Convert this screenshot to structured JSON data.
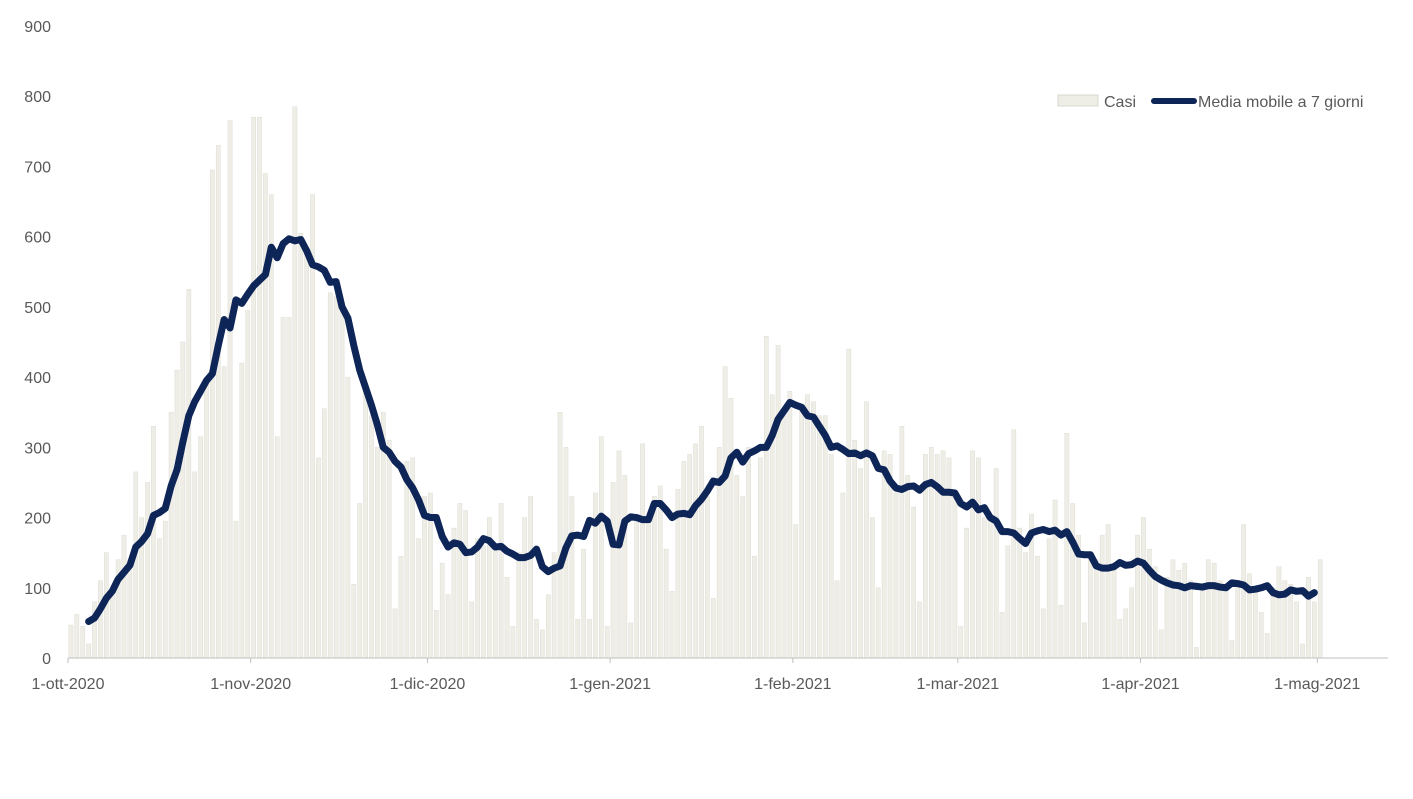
{
  "chart_data": {
    "type": "bar",
    "title": "",
    "xlabel": "",
    "ylabel": "",
    "ylim": [
      0,
      900
    ],
    "yticks": [
      0,
      100,
      200,
      300,
      400,
      500,
      600,
      700,
      800,
      900
    ],
    "x_start": "2020-10-01",
    "x_end": "2021-05-12",
    "xticks": [
      {
        "date": "2020-10-01",
        "label": "1-ott-2020"
      },
      {
        "date": "2020-11-01",
        "label": "1-nov-2020"
      },
      {
        "date": "2020-12-01",
        "label": "1-dic-2020"
      },
      {
        "date": "2021-01-01",
        "label": "1-gen-2021"
      },
      {
        "date": "2021-02-01",
        "label": "1-feb-2021"
      },
      {
        "date": "2021-03-01",
        "label": "1-mar-2021"
      },
      {
        "date": "2021-04-01",
        "label": "1-apr-2021"
      },
      {
        "date": "2021-05-01",
        "label": "1-mag-2021"
      }
    ],
    "legend_position": "top-right",
    "grid": false,
    "series": [
      {
        "name": "Casi",
        "kind": "bar",
        "color": "#eeede6",
        "stroke": "#d9d8cf",
        "values": [
          47,
          62,
          45,
          20,
          80,
          110,
          150,
          100,
          140,
          175,
          140,
          265,
          200,
          250,
          330,
          170,
          195,
          350,
          410,
          450,
          525,
          265,
          315,
          400,
          695,
          730,
          415,
          765,
          195,
          420,
          495,
          770,
          770,
          690,
          660,
          315,
          485,
          485,
          785,
          605,
          580,
          660,
          285,
          355,
          520,
          515,
          500,
          400,
          105,
          220,
          385,
          345,
          300,
          350,
          310,
          70,
          145,
          280,
          285,
          170,
          230,
          235,
          68,
          135,
          90,
          185,
          220,
          210,
          80,
          170,
          160,
          200,
          160,
          220,
          115,
          45,
          150,
          200,
          230,
          55,
          40,
          90,
          150,
          350,
          300,
          230,
          55,
          155,
          55,
          235,
          315,
          45,
          250,
          295,
          260,
          50,
          195,
          305,
          200,
          230,
          245,
          155,
          95,
          240,
          280,
          290,
          305,
          330,
          230,
          85,
          300,
          415,
          370,
          260,
          230,
          300,
          145,
          285,
          458,
          375,
          445,
          355,
          380,
          190,
          360,
          375,
          365,
          345,
          345,
          290,
          110,
          235,
          440,
          310,
          270,
          365,
          200,
          100,
          295,
          290,
          235,
          330,
          260,
          215,
          80,
          290,
          300,
          290,
          295,
          285,
          230,
          45,
          185,
          295,
          285,
          200,
          205,
          270,
          65,
          160,
          325,
          185,
          150,
          205,
          145,
          70,
          170,
          225,
          75,
          320,
          220,
          175,
          50,
          150,
          140,
          175,
          190,
          130,
          55,
          70,
          100,
          175,
          200,
          155,
          130,
          40,
          115,
          140,
          125,
          135,
          110,
          15,
          105,
          140,
          135,
          110,
          105,
          25,
          100,
          190,
          120,
          100,
          65,
          35,
          100,
          130,
          110,
          105,
          80,
          20,
          115,
          80,
          140
        ]
      },
      {
        "name": "Media mobile a 7 giorni",
        "kind": "line",
        "color": "#0e2558",
        "values": [
          null,
          null,
          null,
          52,
          57,
          70,
          85,
          95,
          112,
          122,
          132,
          158,
          166,
          177,
          203,
          207,
          213,
          245,
          268,
          308,
          345,
          365,
          380,
          395,
          405,
          445,
          482,
          470,
          510,
          505,
          518,
          530,
          538,
          546,
          585,
          570,
          590,
          597,
          594,
          596,
          580,
          560,
          557,
          552,
          535,
          536,
          500,
          484,
          445,
          410,
          385,
          360,
          332,
          300,
          293,
          280,
          272,
          254,
          242,
          225,
          203,
          200,
          200,
          173,
          158,
          164,
          162,
          150,
          151,
          158,
          170,
          167,
          158,
          159,
          152,
          148,
          143,
          143,
          146,
          155,
          130,
          123,
          128,
          131,
          157,
          174,
          175,
          173,
          196,
          192,
          202,
          195,
          162,
          161,
          195,
          201,
          200,
          197,
          197,
          220,
          220,
          211,
          200,
          205,
          206,
          204,
          217,
          226,
          238,
          252,
          250,
          259,
          285,
          293,
          279,
          291,
          295,
          300,
          300,
          317,
          340,
          352,
          364,
          360,
          357,
          345,
          343,
          330,
          317,
          300,
          302,
          297,
          291,
          292,
          288,
          292,
          288,
          270,
          268,
          252,
          242,
          240,
          244,
          245,
          239,
          247,
          250,
          244,
          236,
          236,
          235,
          220,
          215,
          222,
          211,
          214,
          200,
          195,
          180,
          180,
          178,
          170,
          163,
          178,
          181,
          183,
          180,
          182,
          175,
          180,
          165,
          148,
          147,
          147,
          131,
          128,
          128,
          130,
          136,
          132,
          133,
          138,
          135,
          125,
          116,
          111,
          107,
          104,
          103,
          100,
          103,
          102,
          101,
          103,
          103,
          101,
          100,
          107,
          106,
          104,
          97,
          98,
          100,
          103,
          93,
          90,
          91,
          97,
          95,
          96,
          88,
          93
        ]
      }
    ]
  }
}
